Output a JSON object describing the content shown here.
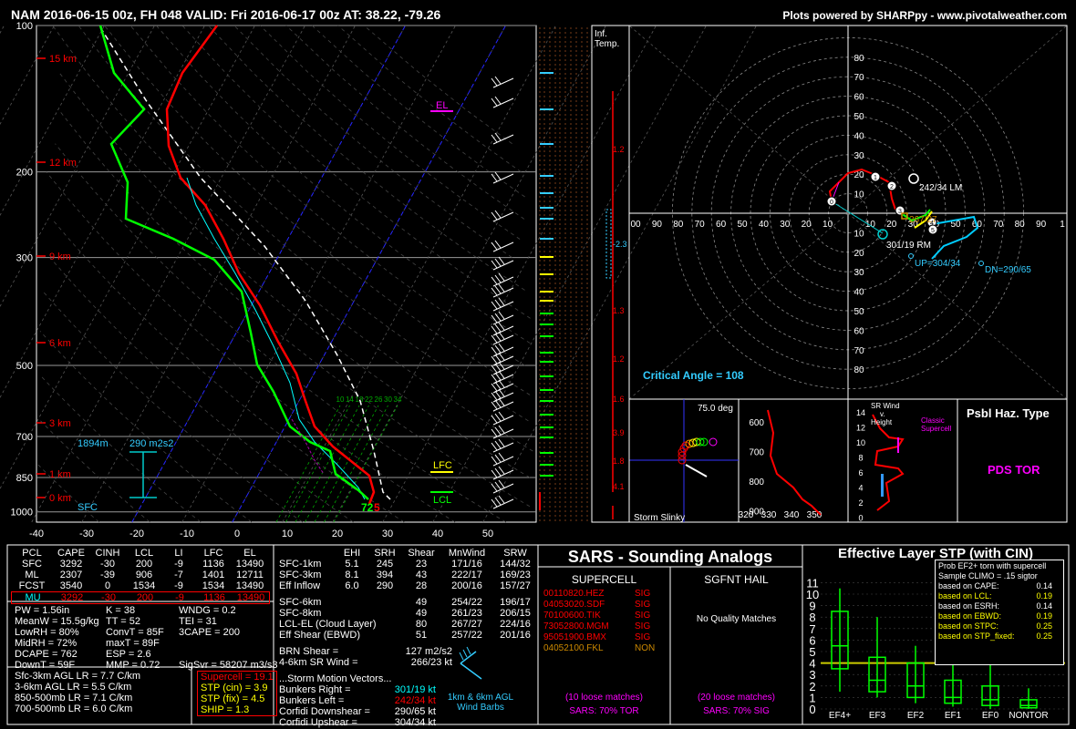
{
  "header": {
    "left": "NAM 2016-06-15 00z, FH 048    VALID: Fri 2016-06-17 00z    AT: 38.22, -79.26",
    "right": "Plots powered by SHARPpy - www.pivotalweather.com"
  },
  "skewt": {
    "pressure_labels": [
      "100",
      "200",
      "300",
      "500",
      "700",
      "850",
      "1000"
    ],
    "height_labels": [
      "15 km",
      "12 km",
      "9 km",
      "6 km",
      "3 km",
      "1 km",
      "0 km"
    ],
    "temp_labels": [
      "-40",
      "-30",
      "-20",
      "-10",
      "0",
      "10",
      "20",
      "30",
      "40",
      "50"
    ],
    "el_label": "EL",
    "lfc_label": "LFC",
    "lcl_label": "LCL",
    "sfc_label": "SFC",
    "srh_height": "1894m",
    "srh_value": "290 m2s2",
    "sfc_td": "72",
    "sfc_t": "5",
    "mixing_ratios": [
      "10",
      "14",
      "18",
      "22",
      "26",
      "30",
      "34"
    ],
    "colors": {
      "temp": "#ff0000",
      "dewp": "#00ff00",
      "parcel": "#ffffff",
      "wetbulb": "#00ffff"
    },
    "chart_data": {
      "type": "line",
      "series": [
        {
          "name": "",
          "points": [
            [
              1000,
              25.5
            ],
            [
              925,
              23
            ],
            [
              850,
              19
            ],
            [
              700,
              9
            ],
            [
              500,
              -9
            ],
            [
              400,
              -21
            ],
            [
              300,
              -36
            ],
            [
              250,
              -45
            ],
            [
              200,
              -53
            ],
            [
              150,
              -60
            ],
            [
              100,
              -61
            ]
          ]
        },
        {
          "name": "",
          "points": [
            [
              1000,
              22
            ],
            [
              925,
              20
            ],
            [
              850,
              15
            ],
            [
              700,
              3
            ],
            [
              600,
              -6
            ],
            [
              500,
              -22
            ],
            [
              400,
              -38
            ],
            [
              300,
              -46
            ],
            [
              250,
              -55
            ],
            [
              200,
              -68
            ],
            [
              150,
              -66
            ],
            [
              100,
              -80
            ]
          ]
        }
      ]
    }
  },
  "inflow_col": {
    "title1": "Inf.",
    "title2": "Temp.",
    "vals": [
      "1.2",
      "-2.3",
      "1.3",
      "1.2",
      "1.6",
      "3.9",
      "1.8",
      "4.1"
    ]
  },
  "hodograph": {
    "rings": [
      "80",
      "70",
      "60",
      "50",
      "40",
      "30",
      "20",
      "10"
    ],
    "x_labels": [
      "00",
      "90",
      "80",
      "70",
      "60",
      "50",
      "40",
      "30",
      "20",
      "10",
      "",
      "10",
      "20",
      "30",
      "40",
      "50",
      "60",
      "70",
      "80",
      "90",
      "1"
    ],
    "lm_label": "242/34 LM",
    "rm_label": "301/19 RM",
    "up_label": "UP=304/34",
    "dn_label": "DN=290/65",
    "mean_label": "267/27",
    "critical_angle": "Critical Angle = 108"
  },
  "slinky": {
    "angle": "75.0 deg",
    "label": "Storm Slinky"
  },
  "theta_panel": {
    "y_labels": [
      "600",
      "700",
      "800",
      "900"
    ],
    "x_labels": [
      "320",
      "330",
      "340",
      "350"
    ]
  },
  "srwind_panel": {
    "y_labels": [
      "14",
      "12",
      "10",
      "8",
      "6",
      "4",
      "2",
      "0"
    ],
    "title1": "SR Wind",
    "title2": "v.",
    "title3": "Height",
    "classic": "Classic",
    "supercell": "Supercell"
  },
  "haz": {
    "title": "Psbl Haz. Type",
    "value": "PDS TOR"
  },
  "parcel_table": {
    "headers": [
      "PCL",
      "CAPE",
      "CINH",
      "LCL",
      "LI",
      "LFC",
      "EL"
    ],
    "rows": [
      [
        "SFC",
        "3292",
        "-30",
        "200",
        "-9",
        "1136",
        "13490"
      ],
      [
        "ML",
        "2307",
        "-39",
        "906",
        "-7",
        "1401",
        "12711"
      ],
      [
        "FCST",
        "3540",
        "0",
        "1534",
        "-9",
        "1534",
        "13490"
      ],
      [
        "MU",
        "3292",
        "-30",
        "200",
        "-9",
        "1136",
        "13490"
      ]
    ],
    "indices": [
      [
        "PW = 1.56in",
        "K = 38",
        "WNDG = 0.2"
      ],
      [
        "MeanW = 15.5g/kg",
        "TT = 52",
        "TEI = 31"
      ],
      [
        "LowRH = 80%",
        "ConvT = 85F",
        "3CAPE = 200"
      ],
      [
        "MidRH = 72%",
        "maxT = 89F",
        ""
      ],
      [
        "DCAPE = 762",
        "ESP = 2.6",
        ""
      ],
      [
        "DownT = 59F",
        "MMP = 0.72",
        "SigSvr = 58207 m3/s3"
      ]
    ],
    "lapse": [
      "Sfc-3km AGL LR = 7.7 C/km",
      "3-6km AGL LR = 5.5 C/km",
      "850-500mb LR = 7.1 C/km",
      "700-500mb LR = 6.0 C/km"
    ],
    "comp": [
      "Supercell = 19.1",
      "STP (cin) = 3.9",
      "STP (fix) = 4.5",
      "SHIP = 1.3"
    ]
  },
  "kin_table": {
    "headers": [
      "EHI",
      "SRH",
      "Shear",
      "MnWind",
      "SRW"
    ],
    "rows": [
      [
        "SFC-1km",
        "5.1",
        "245",
        "23",
        "171/16",
        "144/32"
      ],
      [
        "SFC-3km",
        "8.1",
        "394",
        "43",
        "222/17",
        "169/23"
      ],
      [
        "Eff Inflow",
        "6.0",
        "290",
        "28",
        "200/16",
        "157/27"
      ],
      [
        "",
        "",
        "",
        "",
        "",
        ""
      ],
      [
        "SFC-6km",
        "",
        "",
        "49",
        "254/22",
        "196/17"
      ],
      [
        "SFC-8km",
        "",
        "",
        "49",
        "261/23",
        "206/15"
      ],
      [
        "LCL-EL (Cloud Layer)",
        "",
        "",
        "80",
        "267/27",
        "224/16"
      ],
      [
        "Eff Shear (EBWD)",
        "",
        "",
        "51",
        "257/22",
        "201/16"
      ]
    ],
    "brn": [
      "BRN Shear =",
      "127 m2/s2"
    ],
    "srw46": [
      "4-6km SR Wind =",
      "266/23 kt"
    ],
    "smv_title": "...Storm Motion Vectors...",
    "smv": [
      [
        "Bunkers Right =",
        "301/19 kt"
      ],
      [
        "Bunkers Left =",
        "242/34 kt"
      ],
      [
        "Corfidi Downshear =",
        "290/65 kt"
      ],
      [
        "Corfidi Upshear =",
        "304/34 kt"
      ]
    ],
    "barb_label1": "1km & 6km AGL",
    "barb_label2": "Wind Barbs"
  },
  "sars": {
    "title": "SARS - Sounding Analogs",
    "supercell_title": "SUPERCELL",
    "hail_title": "SGFNT HAIL",
    "supercell": [
      [
        "00110820.HEZ",
        "SIG"
      ],
      [
        "04053020.SDF",
        "SIG"
      ],
      [
        "70100600.TIK",
        "SIG"
      ],
      [
        "73052800.MGM",
        "SIG"
      ],
      [
        "95051900.BMX",
        "SIG"
      ],
      [
        "04052100.FKL",
        "NON"
      ]
    ],
    "hail_msg": "No Quality Matches",
    "sc_loose": "(10 loose matches)",
    "sc_pct": "SARS: 70% TOR",
    "hail_loose": "(20 loose matches)",
    "hail_pct": "SARS: 70% SIG"
  },
  "stp": {
    "title": "Effective Layer STP (with CIN)",
    "legend_title1": "Prob EF2+ torn with supercell",
    "legend_title2": "Sample CLIMO = .15 sigtor",
    "legend": [
      [
        "based on CAPE:",
        "0.14"
      ],
      [
        "based on LCL:",
        "0.19"
      ],
      [
        "based on ESRH:",
        "0.14"
      ],
      [
        "based on EBWD:",
        "0.19"
      ],
      [
        "based on STPC:",
        "0.25"
      ],
      [
        "based on STP_fixed:",
        "0.25"
      ]
    ],
    "y_labels": [
      "11",
      "10",
      "9",
      "8",
      "7",
      "6",
      "5",
      "4",
      "3",
      "2",
      "1",
      "0"
    ],
    "categories": [
      "EF4+",
      "EF3",
      "EF2",
      "EF1",
      "EF0",
      "NONTOR"
    ],
    "chart_data": {
      "type": "bar",
      "categories": [
        "EF4+",
        "EF3",
        "EF2",
        "EF1",
        "EF0",
        "NONTOR"
      ],
      "box": [
        [
          1.5,
          3.5,
          5.5,
          8.5,
          10.5
        ],
        [
          1,
          1.5,
          2.5,
          4.5,
          8
        ],
        [
          0.5,
          1,
          2,
          4,
          5.5
        ],
        [
          0.2,
          0.5,
          1,
          2.5,
          4.5
        ],
        [
          0,
          0.3,
          0.8,
          2,
          4
        ],
        [
          0,
          0.1,
          0.3,
          0.8,
          1.8
        ]
      ],
      "current": 4.0
    }
  }
}
